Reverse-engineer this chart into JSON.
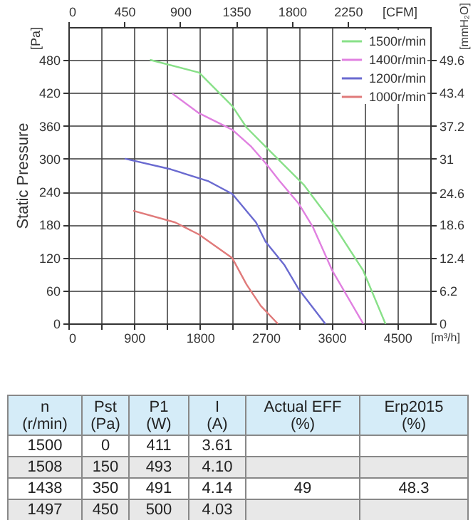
{
  "chart_data": {
    "type": "line",
    "ylabel": "Static Pressure",
    "xlabel": "[m³/h]",
    "x2label": "[CFM]",
    "y2label": "[mmH₂O]",
    "xlim": [
      0,
      4950
    ],
    "xticks": [
      0,
      {
        "value": 450,
        "label": null
      },
      900,
      {
        "value": 1350,
        "label": null
      },
      1800,
      {
        "value": 2250,
        "label": null
      },
      2700,
      {
        "value": 3150,
        "label": null
      },
      3600,
      {
        "value": 4050,
        "label": null
      },
      4500
    ],
    "x2lim": [
      0,
      2913
    ],
    "x2ticks": [
      0,
      450,
      900,
      1350,
      1800,
      2250
    ],
    "ylim": [
      0,
      540
    ],
    "yticks": [
      0,
      60,
      120,
      180,
      240,
      300,
      360,
      420,
      480
    ],
    "y2lim": [
      0,
      55.8
    ],
    "y2ticks": [
      0,
      6.2,
      12.4,
      18.6,
      24.6,
      31,
      37.2,
      43.4,
      49.6
    ],
    "grid": true,
    "legend": "top right",
    "series": [
      {
        "name": "1500r/min",
        "color": "#88e088",
        "x": [
          1125,
          1787,
          2242,
          2437,
          2697,
          3217,
          3607,
          4030,
          4335
        ],
        "values": [
          480,
          457,
          396,
          357,
          322,
          253,
          184,
          97,
          0
        ]
      },
      {
        "name": "1400r/min",
        "color": "#e080e0",
        "x": [
          1430,
          1787,
          2242,
          2502,
          2697,
          2892,
          3152,
          3347,
          3607,
          4030
        ],
        "values": [
          418,
          383,
          353,
          322,
          292,
          259,
          218,
          175,
          97,
          0
        ]
      },
      {
        "name": "1200r/min",
        "color": "#6a6ad0",
        "x": [
          780,
          1397,
          1917,
          2242,
          2567,
          2697,
          2957,
          3152,
          3510
        ],
        "values": [
          300,
          281,
          259,
          236,
          184,
          149,
          106,
          62,
          0
        ]
      },
      {
        "name": "1000r/min",
        "color": "#e07a7a",
        "x": [
          897,
          1462,
          1787,
          2242,
          2437,
          2632,
          2860
        ],
        "values": [
          205,
          184,
          162,
          119,
          71,
          32,
          0
        ]
      }
    ],
    "annotations": [
      "[Pa]",
      "n\n(r/min)",
      "Pst\n(Pa)",
      "P1\n(W)",
      "I\n(A)",
      "Actual EFF\n(%)",
      "Erp2015\n(%)",
      "1500",
      "0",
      "411",
      "3.61",
      "1508",
      "150",
      "493",
      "4.10",
      "1438",
      "350",
      "491",
      "4.14",
      "49",
      "48.3",
      "1497",
      "450",
      "500",
      "4.03"
    ]
  }
}
